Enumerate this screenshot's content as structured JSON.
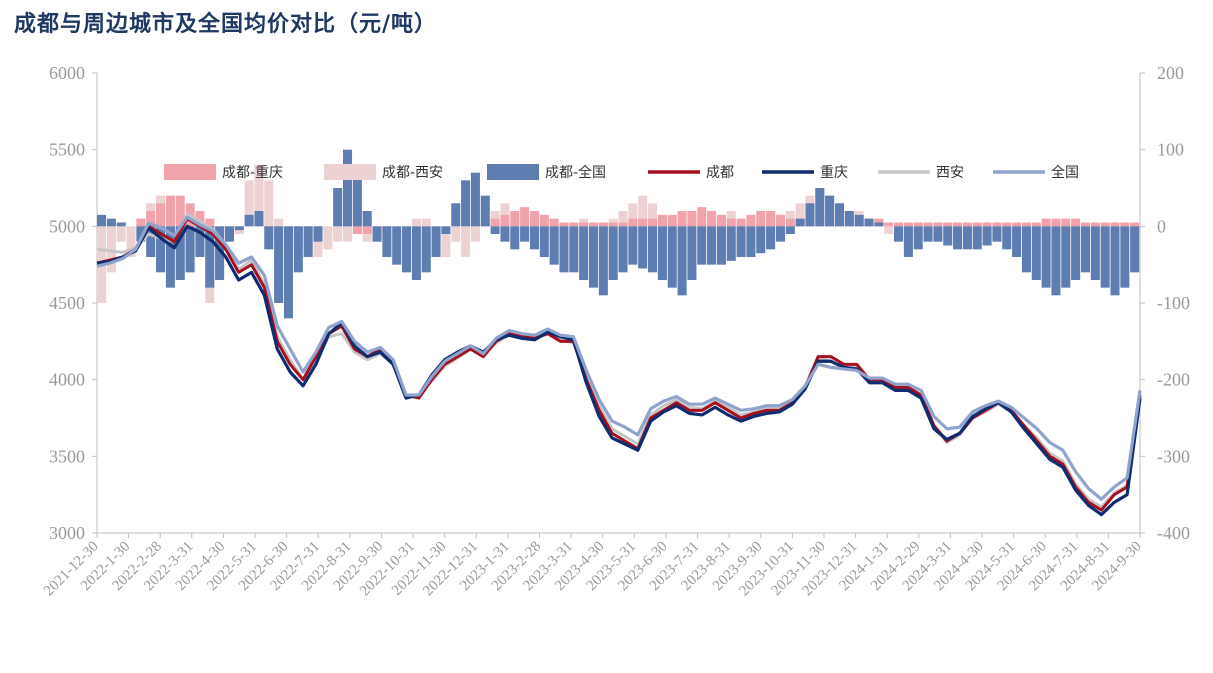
{
  "title": "成都与周边城市及全国均价对比（元/吨）",
  "colors": {
    "chengdu_chongqing": "#F0A3AB",
    "chengdu_xian": "#EDD2D4",
    "chengdu_national": "#5E7DB1",
    "chengdu": "#A50F1E",
    "chongqing": "#0E2C6E",
    "xian": "#C6C6C6",
    "national": "#8FA3CC"
  },
  "chart_data": {
    "type": "bar+line",
    "title": "成都与周边城市及全国均价对比（元/吨）",
    "xlabel": "",
    "ylabel": "",
    "ylim_left": [
      3000,
      6000
    ],
    "yticks_left": [
      "6000",
      "5500",
      "5000",
      "4500",
      "4000",
      "3500",
      "3000"
    ],
    "ylim_right": [
      -400,
      200
    ],
    "yticks_right": [
      "200",
      "100",
      "0",
      "-100",
      "-200",
      "-300",
      "-400"
    ],
    "x_ticks": [
      "2021-12-30",
      "2022-1-30",
      "2022-2-28",
      "2022-3-31",
      "2022-4-30",
      "2022-5-31",
      "2022-6-30",
      "2022-7-31",
      "2022-8-31",
      "2022-9-30",
      "2022-10-31",
      "2022-11-30",
      "2022-12-31",
      "2023-1-31",
      "2023-2-28",
      "2023-3-31",
      "2023-4-30",
      "2023-5-31",
      "2023-6-30",
      "2023-7-31",
      "2023-8-31",
      "2023-9-30",
      "2023-10-31",
      "2023-11-30",
      "2023-12-31",
      "2024-1-31",
      "2024-2-29",
      "2024-3-31",
      "2024-4-30",
      "2024-5-31",
      "2024-6-30",
      "2024-7-31",
      "2024-8-31",
      "2024-9-30"
    ],
    "legend": [
      "成都-重庆",
      "成都-西安",
      "成都-全国",
      "成都",
      "重庆",
      "西安",
      "全国"
    ],
    "legend_position": "top",
    "bar_series": [
      {
        "name": "成都-西安",
        "axis": "right",
        "values": [
          -100,
          -60,
          -20,
          -40,
          10,
          30,
          40,
          20,
          -40,
          -60,
          -20,
          -100,
          -60,
          -10,
          -10,
          60,
          80,
          60,
          10,
          -40,
          -30,
          -30,
          -40,
          -30,
          -20,
          -20,
          -10,
          -20,
          -20,
          -10,
          0,
          0,
          10,
          10,
          -10,
          -40,
          -20,
          -40,
          -20,
          0,
          20,
          30,
          0,
          -20,
          -20,
          -20,
          -20,
          -10,
          0,
          10,
          0,
          -10,
          10,
          20,
          30,
          40,
          30,
          10,
          10,
          5,
          5,
          5,
          5,
          10,
          20,
          10,
          5,
          5,
          5,
          10,
          20,
          30,
          40,
          50,
          40,
          30,
          20,
          20,
          10,
          0,
          -10,
          -20,
          -30,
          -20,
          -10,
          0,
          5,
          5,
          5,
          -10,
          -10,
          -10,
          -10,
          -10,
          -10,
          -10,
          -10,
          -10,
          -10,
          -10,
          -10,
          -10,
          -10,
          -10,
          -10,
          -10
        ]
      },
      {
        "name": "成都-重庆",
        "axis": "right",
        "values": [
          0,
          0,
          0,
          0,
          10,
          20,
          30,
          40,
          40,
          30,
          20,
          10,
          0,
          0,
          0,
          0,
          0,
          -10,
          -10,
          -5,
          -5,
          -5,
          -5,
          0,
          0,
          0,
          -10,
          -10,
          -5,
          -5,
          0,
          0,
          0,
          0,
          0,
          0,
          0,
          0,
          0,
          5,
          10,
          15,
          20,
          25,
          20,
          15,
          10,
          5,
          5,
          5,
          5,
          5,
          5,
          5,
          10,
          10,
          10,
          15,
          15,
          20,
          20,
          25,
          20,
          15,
          10,
          10,
          15,
          20,
          20,
          15,
          10,
          10,
          10,
          10,
          10,
          10,
          10,
          10,
          10,
          10,
          5,
          5,
          5,
          5,
          5,
          5,
          5,
          5,
          5,
          5,
          5,
          5,
          5,
          5,
          5,
          5,
          10,
          10,
          10,
          10,
          5,
          5,
          5,
          5,
          5,
          5
        ]
      },
      {
        "name": "成都-全国",
        "axis": "right",
        "values": [
          15,
          10,
          5,
          0,
          -20,
          -40,
          -60,
          -80,
          -70,
          -60,
          -40,
          -80,
          -70,
          -20,
          -5,
          15,
          20,
          -30,
          -100,
          -120,
          -60,
          -40,
          -20,
          0,
          50,
          100,
          80,
          20,
          -20,
          -40,
          -50,
          -60,
          -70,
          -60,
          -40,
          -10,
          30,
          60,
          70,
          40,
          -10,
          -20,
          -30,
          -20,
          -30,
          -40,
          -50,
          -60,
          -60,
          -70,
          -80,
          -90,
          -70,
          -60,
          -50,
          -55,
          -60,
          -70,
          -80,
          -90,
          -70,
          -50,
          -50,
          -50,
          -45,
          -40,
          -40,
          -35,
          -30,
          -20,
          -10,
          10,
          30,
          50,
          40,
          30,
          20,
          15,
          10,
          5,
          0,
          -20,
          -40,
          -30,
          -20,
          -20,
          -25,
          -30,
          -30,
          -30,
          -25,
          -20,
          -30,
          -40,
          -60,
          -70,
          -80,
          -90,
          -80,
          -70,
          -60,
          -70,
          -80,
          -90,
          -80,
          -60
        ]
      }
    ],
    "line_series": [
      {
        "name": "成都",
        "axis": "left",
        "values": [
          4760,
          4780,
          4800,
          4850,
          5000,
          4950,
          4900,
          5050,
          5000,
          4950,
          4850,
          4700,
          4750,
          4600,
          4250,
          4100,
          4000,
          4150,
          4300,
          4350,
          4200,
          4150,
          4200,
          4100,
          3900,
          3880,
          4000,
          4100,
          4150,
          4200,
          4150,
          4250,
          4300,
          4280,
          4270,
          4300,
          4250,
          4250,
          4000,
          3800,
          3650,
          3600,
          3550,
          3750,
          3800,
          3850,
          3800,
          3800,
          3850,
          3800,
          3750,
          3780,
          3800,
          3800,
          3850,
          3950,
          4150,
          4150,
          4100,
          4100,
          4000,
          4000,
          3950,
          3950,
          3900,
          3700,
          3600,
          3650,
          3750,
          3800,
          3850,
          3800,
          3700,
          3600,
          3500,
          3450,
          3300,
          3200,
          3150,
          3250,
          3300,
          3900
        ]
      },
      {
        "name": "重庆",
        "axis": "left",
        "values": [
          4760,
          4770,
          4800,
          4840,
          4990,
          4920,
          4860,
          5000,
          4960,
          4900,
          4800,
          4650,
          4700,
          4550,
          4200,
          4050,
          3960,
          4100,
          4300,
          4370,
          4220,
          4150,
          4180,
          4100,
          3880,
          3900,
          4030,
          4130,
          4180,
          4220,
          4180,
          4260,
          4290,
          4270,
          4260,
          4310,
          4280,
          4260,
          3980,
          3760,
          3620,
          3580,
          3540,
          3730,
          3790,
          3830,
          3780,
          3770,
          3820,
          3770,
          3730,
          3760,
          3780,
          3790,
          3840,
          3940,
          4120,
          4120,
          4080,
          4070,
          3980,
          3980,
          3930,
          3930,
          3880,
          3680,
          3610,
          3650,
          3760,
          3810,
          3850,
          3790,
          3680,
          3580,
          3480,
          3430,
          3280,
          3180,
          3120,
          3200,
          3250,
          3880
        ]
      },
      {
        "name": "西安",
        "axis": "left",
        "values": [
          4850,
          4840,
          4830,
          4860,
          4950,
          4920,
          4900,
          5080,
          5030,
          4980,
          4880,
          4720,
          4780,
          4620,
          4280,
          4130,
          4000,
          4120,
          4280,
          4300,
          4180,
          4130,
          4170,
          4100,
          3900,
          3900,
          3990,
          4090,
          4140,
          4200,
          4160,
          4240,
          4290,
          4270,
          4270,
          4310,
          4260,
          4240,
          4030,
          3830,
          3680,
          3630,
          3580,
          3770,
          3830,
          3870,
          3820,
          3810,
          3860,
          3820,
          3770,
          3790,
          3810,
          3810,
          3860,
          3960,
          4140,
          4120,
          4080,
          4080,
          3990,
          3990,
          3950,
          3940,
          3890,
          3700,
          3590,
          3640,
          3750,
          3790,
          3840,
          3790,
          3700,
          3620,
          3520,
          3470,
          3320,
          3220,
          3170,
          3260,
          3310,
          3900
        ]
      },
      {
        "name": "全国",
        "axis": "left",
        "values": [
          4740,
          4760,
          4790,
          4850,
          5020,
          4990,
          4940,
          5060,
          5010,
          4970,
          4880,
          4760,
          4800,
          4680,
          4350,
          4200,
          4050,
          4180,
          4340,
          4380,
          4250,
          4180,
          4210,
          4130,
          3900,
          3900,
          4020,
          4120,
          4170,
          4220,
          4170,
          4270,
          4320,
          4300,
          4290,
          4330,
          4290,
          4280,
          4060,
          3870,
          3730,
          3690,
          3640,
          3810,
          3860,
          3890,
          3840,
          3840,
          3880,
          3840,
          3800,
          3810,
          3830,
          3830,
          3870,
          3960,
          4100,
          4080,
          4070,
          4060,
          4010,
          4010,
          3970,
          3970,
          3930,
          3760,
          3680,
          3690,
          3790,
          3830,
          3860,
          3820,
          3750,
          3680,
          3590,
          3540,
          3400,
          3290,
          3220,
          3300,
          3360,
          3930
        ]
      }
    ]
  }
}
